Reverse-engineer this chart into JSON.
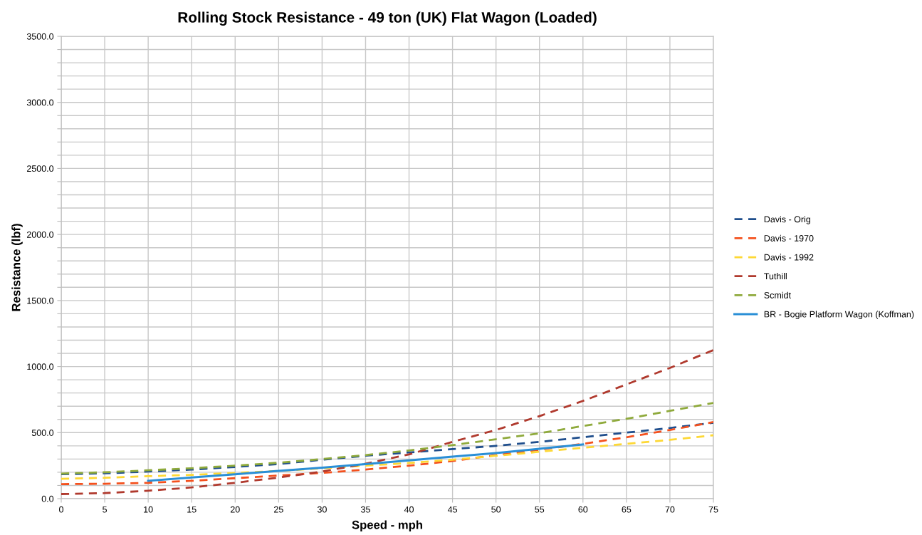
{
  "chart_data": {
    "type": "line",
    "title": "Rolling Stock Resistance - 49 ton (UK) Flat Wagon (Loaded)",
    "xlabel": "Speed - mph",
    "ylabel": "Resistance (lbf)",
    "x": [
      0,
      5,
      10,
      15,
      20,
      25,
      30,
      35,
      40,
      45,
      50,
      55,
      60,
      65,
      70,
      75
    ],
    "series": [
      {
        "name": "Davis - Orig",
        "color": "#1f4e8c",
        "line_style": "dashed",
        "values": [
          185,
          192,
          205,
          220,
          240,
          262,
          295,
          325,
          350,
          375,
          400,
          430,
          465,
          500,
          535,
          575
        ]
      },
      {
        "name": "Davis - 1970",
        "color": "#f4511e",
        "line_style": "dashed",
        "values": [
          110,
          113,
          120,
          135,
          155,
          175,
          195,
          220,
          250,
          285,
          330,
          370,
          415,
          465,
          520,
          580
        ]
      },
      {
        "name": "Davis - 1992",
        "color": "#fdd835",
        "line_style": "dashed",
        "values": [
          150,
          158,
          170,
          180,
          195,
          210,
          230,
          250,
          270,
          295,
          325,
          355,
          385,
          415,
          445,
          480
        ]
      },
      {
        "name": "Tuthill",
        "color": "#b03a2e",
        "line_style": "dashed",
        "values": [
          35,
          42,
          60,
          85,
          120,
          160,
          205,
          265,
          335,
          430,
          520,
          625,
          740,
          865,
          990,
          1125
        ]
      },
      {
        "name": "Scmidt",
        "color": "#8faa3c",
        "line_style": "dashed",
        "values": [
          190,
          200,
          215,
          230,
          250,
          272,
          300,
          330,
          365,
          405,
          450,
          495,
          550,
          605,
          665,
          725
        ]
      },
      {
        "name": "BR - Bogie Platform Wagon (Koffman)",
        "color": "#2a8fd6",
        "line_style": "solid",
        "x": [
          10,
          15,
          20,
          25,
          30,
          35,
          40,
          45,
          50,
          55,
          60
        ],
        "values": [
          135,
          160,
          185,
          210,
          235,
          262,
          290,
          318,
          345,
          378,
          410
        ]
      }
    ],
    "xlim": [
      0,
      75
    ],
    "xticks": [
      0,
      5,
      10,
      15,
      20,
      25,
      30,
      35,
      40,
      45,
      50,
      55,
      60,
      65,
      70,
      75
    ],
    "ylim": [
      0,
      3500
    ],
    "yticks": [
      {
        "value": 0,
        "label": "0.0"
      },
      {
        "value": 100,
        "label": null
      },
      {
        "value": 200,
        "label": null
      },
      {
        "value": 300,
        "label": null
      },
      {
        "value": 400,
        "label": null
      },
      {
        "value": 500,
        "label": "500.0"
      },
      {
        "value": 600,
        "label": null
      },
      {
        "value": 700,
        "label": null
      },
      {
        "value": 800,
        "label": null
      },
      {
        "value": 900,
        "label": null
      },
      {
        "value": 1000,
        "label": "1000.0"
      },
      {
        "value": 1100,
        "label": null
      },
      {
        "value": 1200,
        "label": null
      },
      {
        "value": 1300,
        "label": null
      },
      {
        "value": 1400,
        "label": null
      },
      {
        "value": 1500,
        "label": "1500.0"
      },
      {
        "value": 1600,
        "label": null
      },
      {
        "value": 1700,
        "label": null
      },
      {
        "value": 1800,
        "label": null
      },
      {
        "value": 1900,
        "label": null
      },
      {
        "value": 2000,
        "label": "2000.0"
      },
      {
        "value": 2100,
        "label": null
      },
      {
        "value": 2200,
        "label": null
      },
      {
        "value": 2300,
        "label": null
      },
      {
        "value": 2400,
        "label": null
      },
      {
        "value": 2500,
        "label": "2500.0"
      },
      {
        "value": 2600,
        "label": null
      },
      {
        "value": 2700,
        "label": null
      },
      {
        "value": 2800,
        "label": null
      },
      {
        "value": 2900,
        "label": null
      },
      {
        "value": 3000,
        "label": "3000.0"
      },
      {
        "value": 3100,
        "label": null
      },
      {
        "value": 3200,
        "label": null
      },
      {
        "value": 3300,
        "label": null
      },
      {
        "value": 3400,
        "label": null
      },
      {
        "value": 3500,
        "label": "3500.0"
      }
    ],
    "grid": true,
    "legend": "right",
    "marker": "none"
  }
}
